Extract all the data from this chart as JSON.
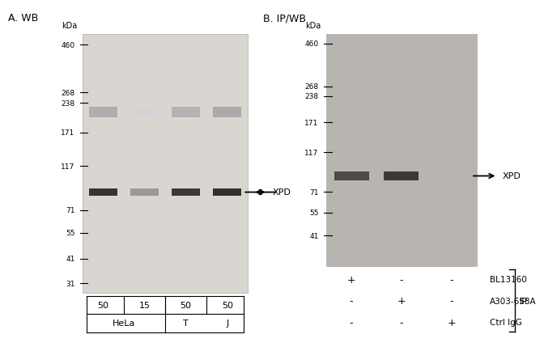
{
  "panel_A_title": "A. WB",
  "panel_B_title": "B. IP/WB",
  "kda_labels_A": [
    "460",
    "268",
    "238",
    "171",
    "117",
    "71",
    "55",
    "41",
    "31"
  ],
  "kda_values_A": [
    460,
    268,
    238,
    171,
    117,
    71,
    55,
    41,
    31
  ],
  "kda_labels_B": [
    "460",
    "268",
    "238",
    "171",
    "117",
    "71",
    "55",
    "41"
  ],
  "kda_values_B": [
    460,
    268,
    238,
    171,
    117,
    71,
    55,
    41
  ],
  "gel_bg_A": "#d9d6d1",
  "gel_bg_B": "#b8b5b0",
  "label_XPD": "XPD",
  "xpd_kda": 87,
  "upper_band_kda": 215,
  "panel_A_lanes": [
    {
      "xpd_intensity": 0.9,
      "upper_intensity": 0.52
    },
    {
      "xpd_intensity": 0.45,
      "upper_intensity": 0.28
    },
    {
      "xpd_intensity": 0.88,
      "upper_intensity": 0.5
    },
    {
      "xpd_intensity": 0.92,
      "upper_intensity": 0.55
    }
  ],
  "panel_B_lanes": [
    {
      "xpd_intensity": 0.82
    },
    {
      "xpd_intensity": 0.9
    }
  ],
  "amounts_A": [
    "50",
    "15",
    "50",
    "50"
  ],
  "cell_lines_A": [
    "HeLa",
    "T",
    "J"
  ],
  "bottom_B_rows": [
    [
      "+",
      "-",
      "-",
      "BL13160"
    ],
    [
      "-",
      "+",
      "-",
      "A303-658A"
    ],
    [
      "-",
      "-",
      "+",
      "Ctrl IgG"
    ]
  ],
  "bottom_B_ip_label": "IP"
}
